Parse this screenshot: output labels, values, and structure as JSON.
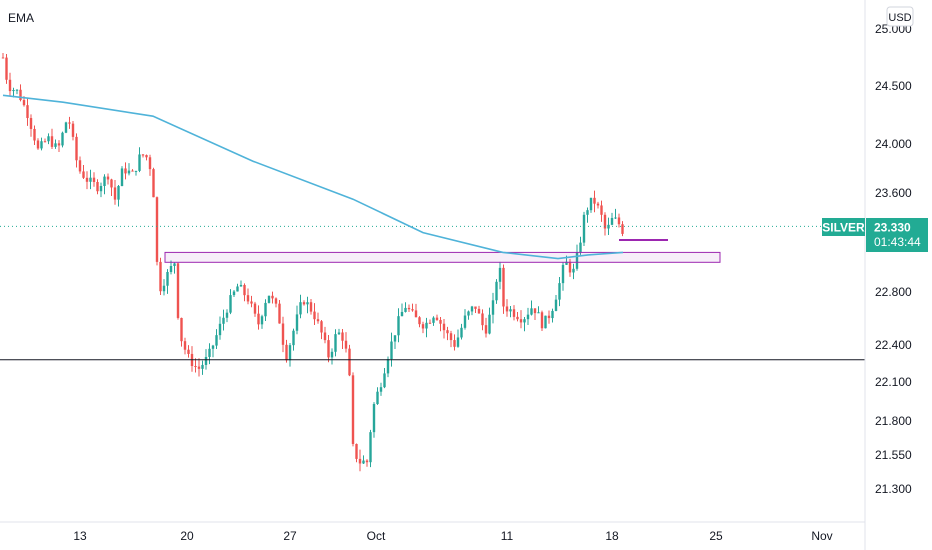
{
  "indicator": {
    "title": "EMA"
  },
  "currency": {
    "label": "USD"
  },
  "symbol_badge": {
    "symbol": "SILVER",
    "price": "23.330",
    "countdown": "01:43:44"
  },
  "colors": {
    "up": "#26a69a",
    "down": "#ef5350",
    "ema": "#4fb3d9",
    "zone": "#9c27b0",
    "badge": "#22ab94",
    "support": "#131722"
  },
  "chart_data": {
    "type": "candlestick",
    "y_scale": "log",
    "y_ticks": [
      "25.000",
      "24.500",
      "24.000",
      "23.600",
      "22.800",
      "22.400",
      "22.100",
      "21.800",
      "21.550",
      "21.300"
    ],
    "x_ticks": [
      "13",
      "20",
      "27",
      "Oct",
      "11",
      "18",
      "25",
      "Nov"
    ],
    "last_price": 23.33,
    "support_line": 22.28,
    "zone": {
      "low": 23.04,
      "high": 23.12
    },
    "small_line": 23.22,
    "ema_points": [
      {
        "x": 0,
        "y": 24.42
      },
      {
        "x": 60,
        "y": 24.36
      },
      {
        "x": 150,
        "y": 24.24
      },
      {
        "x": 250,
        "y": 23.86
      },
      {
        "x": 350,
        "y": 23.55
      },
      {
        "x": 420,
        "y": 23.28
      },
      {
        "x": 500,
        "y": 23.12
      },
      {
        "x": 555,
        "y": 23.07
      },
      {
        "x": 585,
        "y": 23.1
      },
      {
        "x": 620,
        "y": 23.12
      }
    ],
    "price_path": [
      {
        "x": 0,
        "y": 24.75
      },
      {
        "x": 5,
        "y": 24.5
      },
      {
        "x": 15,
        "y": 24.45
      },
      {
        "x": 25,
        "y": 24.25
      },
      {
        "x": 35,
        "y": 23.95
      },
      {
        "x": 45,
        "y": 24.05
      },
      {
        "x": 55,
        "y": 23.95
      },
      {
        "x": 65,
        "y": 24.25
      },
      {
        "x": 75,
        "y": 23.8
      },
      {
        "x": 85,
        "y": 23.7
      },
      {
        "x": 95,
        "y": 23.65
      },
      {
        "x": 105,
        "y": 23.75
      },
      {
        "x": 112,
        "y": 23.55
      },
      {
        "x": 120,
        "y": 23.8
      },
      {
        "x": 130,
        "y": 23.75
      },
      {
        "x": 138,
        "y": 23.92
      },
      {
        "x": 146,
        "y": 23.88
      },
      {
        "x": 152,
        "y": 23.5
      },
      {
        "x": 155,
        "y": 22.8
      },
      {
        "x": 165,
        "y": 22.95
      },
      {
        "x": 172,
        "y": 23.05
      },
      {
        "x": 176,
        "y": 22.5
      },
      {
        "x": 185,
        "y": 22.3
      },
      {
        "x": 195,
        "y": 22.2
      },
      {
        "x": 205,
        "y": 22.3
      },
      {
        "x": 215,
        "y": 22.5
      },
      {
        "x": 225,
        "y": 22.7
      },
      {
        "x": 235,
        "y": 22.85
      },
      {
        "x": 245,
        "y": 22.75
      },
      {
        "x": 255,
        "y": 22.55
      },
      {
        "x": 265,
        "y": 22.8
      },
      {
        "x": 275,
        "y": 22.65
      },
      {
        "x": 283,
        "y": 22.3
      },
      {
        "x": 292,
        "y": 22.55
      },
      {
        "x": 300,
        "y": 22.75
      },
      {
        "x": 310,
        "y": 22.65
      },
      {
        "x": 318,
        "y": 22.5
      },
      {
        "x": 326,
        "y": 22.3
      },
      {
        "x": 334,
        "y": 22.5
      },
      {
        "x": 341,
        "y": 22.45
      },
      {
        "x": 346,
        "y": 22.2
      },
      {
        "x": 350,
        "y": 21.6
      },
      {
        "x": 356,
        "y": 21.5
      },
      {
        "x": 364,
        "y": 21.5
      },
      {
        "x": 370,
        "y": 21.9
      },
      {
        "x": 378,
        "y": 22.1
      },
      {
        "x": 386,
        "y": 22.35
      },
      {
        "x": 394,
        "y": 22.55
      },
      {
        "x": 402,
        "y": 22.7
      },
      {
        "x": 412,
        "y": 22.6
      },
      {
        "x": 422,
        "y": 22.55
      },
      {
        "x": 432,
        "y": 22.65
      },
      {
        "x": 442,
        "y": 22.5
      },
      {
        "x": 452,
        "y": 22.4
      },
      {
        "x": 462,
        "y": 22.6
      },
      {
        "x": 472,
        "y": 22.7
      },
      {
        "x": 482,
        "y": 22.5
      },
      {
        "x": 490,
        "y": 22.7
      },
      {
        "x": 496,
        "y": 23.05
      },
      {
        "x": 500,
        "y": 22.7
      },
      {
        "x": 510,
        "y": 22.65
      },
      {
        "x": 520,
        "y": 22.6
      },
      {
        "x": 530,
        "y": 22.7
      },
      {
        "x": 540,
        "y": 22.55
      },
      {
        "x": 548,
        "y": 22.65
      },
      {
        "x": 556,
        "y": 22.85
      },
      {
        "x": 562,
        "y": 23.05
      },
      {
        "x": 570,
        "y": 22.95
      },
      {
        "x": 576,
        "y": 23.15
      },
      {
        "x": 582,
        "y": 23.45
      },
      {
        "x": 590,
        "y": 23.55
      },
      {
        "x": 597,
        "y": 23.45
      },
      {
        "x": 603,
        "y": 23.28
      },
      {
        "x": 610,
        "y": 23.4
      },
      {
        "x": 616,
        "y": 23.35
      },
      {
        "x": 622,
        "y": 23.26
      }
    ]
  }
}
